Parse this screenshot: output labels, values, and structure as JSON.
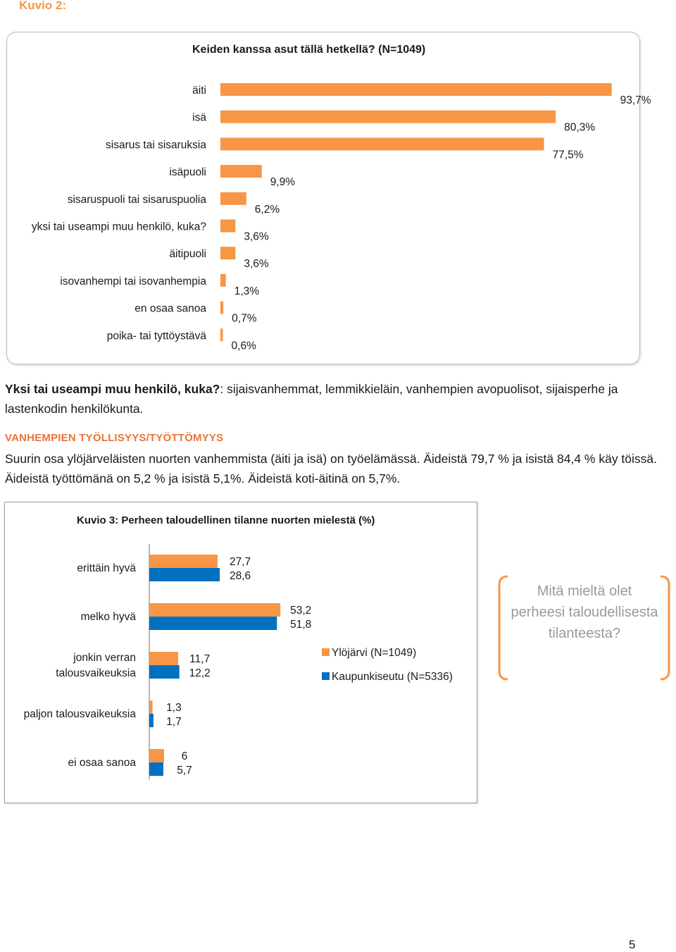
{
  "page": {
    "kuvio2_label": "Kuvio 2:",
    "page_number": "5"
  },
  "chart_data": [
    {
      "type": "bar",
      "orientation": "horizontal",
      "title": "Keiden kanssa asut tällä hetkellä? (N=1049)",
      "categories": [
        "äiti",
        "isä",
        "sisarus tai sisaruksia",
        "isäpuoli",
        "sisaruspuoli tai sisaruspuolia",
        "yksi tai useampi muu henkilö, kuka?",
        "äitipuoli",
        "isovanhempi tai isovanhempia",
        "en osaa sanoa",
        "poika- tai tyttöystävä"
      ],
      "values": [
        93.7,
        80.3,
        77.5,
        9.9,
        6.2,
        3.6,
        3.6,
        1.3,
        0.7,
        0.6
      ],
      "labels": [
        "93,7%",
        "80,3%",
        "77,5%",
        "9,9%",
        "6,2%",
        "3,6%",
        "3,6%",
        "1,3%",
        "0,7%",
        "0,6%"
      ],
      "xlim": [
        0,
        100
      ],
      "color": "#f79646"
    },
    {
      "type": "bar",
      "orientation": "horizontal",
      "title": "Kuvio 3: Perheen taloudellinen tilanne nuorten mielestä (%)",
      "categories": [
        "erittäin hyvä",
        "melko hyvä",
        "jonkin verran talousvaikeuksia",
        "paljon talousvaikeuksia",
        "ei osaa sanoa"
      ],
      "category_lines": [
        [
          "erittäin hyvä"
        ],
        [
          "melko hyvä"
        ],
        [
          "jonkin verran",
          "talousvaikeuksia"
        ],
        [
          "paljon talousvaikeuksia"
        ],
        [
          "ei osaa sanoa"
        ]
      ],
      "series": [
        {
          "name": "Ylöjärvi (N=1049)",
          "values": [
            27.7,
            53.2,
            11.7,
            1.3,
            6
          ],
          "labels": [
            "27,7",
            "53,2",
            "11,7",
            "1,3",
            "6"
          ],
          "color": "#f79646"
        },
        {
          "name": "Kaupunkiseutu (N=5336)",
          "values": [
            28.6,
            51.8,
            12.2,
            1.7,
            5.7
          ],
          "labels": [
            "28,6",
            "51,8",
            "12,2",
            "1,7",
            "5,7"
          ],
          "color": "#0070c0"
        }
      ],
      "xlim": [
        0,
        100
      ],
      "legend": "right"
    }
  ],
  "note": {
    "bold": "Yksi tai useampi muu henkilö, kuka?",
    "text": ": sijaisvanhemmat, lemmikkieläin, vanhempien avopuolisot, sijaisperhe ja lastenkodin henkilökunta."
  },
  "section": {
    "heading": "VANHEMPIEN TYÖLLISYYS/TYÖTTÖMYYS",
    "body": "Suurin osa ylöjärveläisten nuorten vanhemmista (äiti ja isä) on työelämässä. Äideistä 79,7 % ja isistä 84,4 % käy töissä. Äideistä työttömänä on 5,2 % ja isistä 5,1%. Äideistä koti-äitinä on 5,7%."
  },
  "callout": {
    "text": "Mitä mieltä olet perheesi taloudellisesta tilanteesta?",
    "accent": "#f79646"
  }
}
